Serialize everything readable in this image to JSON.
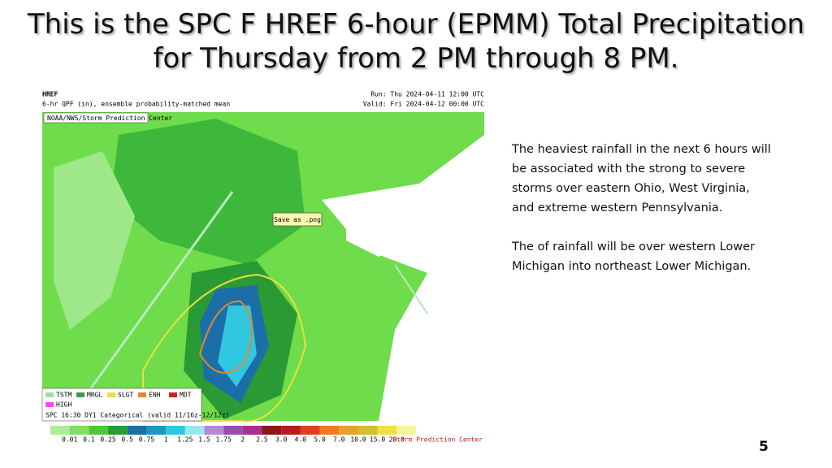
{
  "header": {
    "title_lines": [
      "This is the SPC F HREF 6-hour (EPMM) Total Precipitation",
      "for Thursday from 2 PM through 8 PM."
    ]
  },
  "map": {
    "model": "HREF",
    "product": "6-hr QPF (in), ensemble probability-matched mean",
    "run": "Run: Thu 2024-04-11 12:00 UTC",
    "valid": "Valid: Fri 2024-04-12 00:00 UTC",
    "agency": "NOAA/NWS/Storm Prediction Center",
    "tooltip": "Save as .png",
    "outlook_legend": {
      "items": [
        {
          "label": "TSTM",
          "color": "#9fe0a0"
        },
        {
          "label": "MRGL",
          "color": "#3c9a50"
        },
        {
          "label": "SLGT",
          "color": "#e8e040"
        },
        {
          "label": "ENH",
          "color": "#e08a30"
        },
        {
          "label": "MDT",
          "color": "#d02020"
        },
        {
          "label": "HIGH",
          "color": "#ff40ff"
        }
      ],
      "caption": "SPC 16:30 DY1 Categorical (valid 11/16z-12/12z)"
    },
    "color_scale": {
      "labels": [
        "0.01",
        "0.1",
        "0.25",
        "0.5",
        "0.75",
        "1",
        "1.25",
        "1.5",
        "1.75",
        "2",
        "2.5",
        "3.0",
        "4.0",
        "5.0",
        "7.0",
        "10.0",
        "15.0",
        "20.0"
      ],
      "colors": [
        "#a8f090",
        "#7ee060",
        "#4cc83c",
        "#2a9a34",
        "#1c6ea8",
        "#1f96c8",
        "#30c8e0",
        "#9ae8ee",
        "#b48ad8",
        "#9a4cb8",
        "#a8308c",
        "#8a1818",
        "#b81c1c",
        "#e0401c",
        "#f07a24",
        "#e8a030",
        "#d8bc30",
        "#f0e040",
        "#f8f49a"
      ]
    },
    "logo_text": "Storm Prediction Center"
  },
  "body": {
    "paragraphs": [
      [
        "The heaviest rainfall in the next 6 hours will",
        "be associated with the strong to severe",
        "storms over eastern Ohio, West Virginia,",
        "and extreme western Pennsylvania."
      ],
      [
        "The of rainfall will be over western Lower",
        "Michigan into northeast Lower Michigan."
      ]
    ]
  },
  "slide_number": "5"
}
